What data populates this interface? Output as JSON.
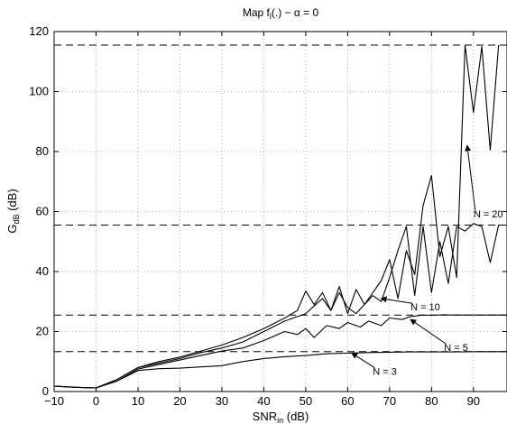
{
  "chart_data": {
    "type": "line",
    "title": {
      "prefix": "Map f",
      "subscript": "l",
      "suffix": "(.) − α = 0"
    },
    "xlabel": {
      "main": "SNR",
      "subscript": "in",
      "suffix": " (dB)"
    },
    "ylabel": {
      "main": "G",
      "subscript": "dB",
      "suffix": " (dB)"
    },
    "xlim": [
      -10,
      98
    ],
    "ylim": [
      0,
      120
    ],
    "xticks": [
      -10,
      0,
      10,
      20,
      30,
      40,
      50,
      60,
      70,
      80,
      90
    ],
    "yticks": [
      0,
      20,
      40,
      60,
      80,
      100,
      120
    ],
    "grid": true,
    "reference_lines": [
      115.5,
      55.5,
      25.5,
      13.3
    ],
    "series": [
      {
        "name": "N = 3",
        "x": [
          -10,
          -5,
          0,
          5,
          10,
          15,
          20,
          25,
          30,
          35,
          40,
          45,
          50,
          55,
          60,
          65,
          70,
          75,
          80,
          85,
          90,
          95,
          98
        ],
        "y": [
          1.8,
          1.4,
          1.2,
          3.5,
          7.0,
          7.6,
          7.8,
          8.2,
          8.6,
          10.0,
          11.0,
          11.6,
          12.0,
          12.6,
          12.8,
          13.0,
          13.1,
          13.2,
          13.2,
          13.2,
          13.3,
          13.3,
          13.3
        ]
      },
      {
        "name": "N = 5",
        "x": [
          -10,
          -5,
          0,
          5,
          10,
          15,
          20,
          25,
          30,
          35,
          40,
          45,
          48,
          50,
          52,
          55,
          58,
          60,
          63,
          65,
          68,
          70,
          73,
          75,
          78,
          80,
          83,
          85,
          88,
          90,
          95,
          98
        ],
        "y": [
          1.8,
          1.4,
          1.2,
          3.5,
          7.5,
          9.0,
          10.5,
          12.0,
          13.5,
          14.5,
          17.0,
          20.0,
          19.0,
          21.0,
          18.0,
          22.0,
          21.0,
          23.0,
          21.5,
          23.5,
          22.0,
          24.5,
          24.0,
          25.0,
          25.5,
          25.4,
          25.6,
          25.5,
          25.5,
          25.5,
          25.5,
          25.5
        ]
      },
      {
        "name": "N = 10",
        "x": [
          -10,
          -5,
          0,
          5,
          10,
          15,
          20,
          25,
          30,
          35,
          40,
          45,
          50,
          52,
          54,
          56,
          58,
          60,
          62,
          64,
          66,
          68,
          70,
          72,
          74,
          76,
          78,
          80,
          82,
          84,
          86,
          88,
          90,
          92,
          94,
          96,
          98
        ],
        "y": [
          1.8,
          1.4,
          1.2,
          4.0,
          8.0,
          9.5,
          11.0,
          13.0,
          14.5,
          16.5,
          20.0,
          23.5,
          26.0,
          28.5,
          31.0,
          27.0,
          33.0,
          28.0,
          26.0,
          29.0,
          32.0,
          30.0,
          38.0,
          47.0,
          55.0,
          32.0,
          55.0,
          33.0,
          50.0,
          36.0,
          55.0,
          53.5,
          56.0,
          55.0,
          43.0,
          55.5,
          55.5
        ]
      },
      {
        "name": "N = 20",
        "x": [
          -10,
          -5,
          0,
          5,
          10,
          15,
          20,
          25,
          30,
          35,
          40,
          45,
          48,
          50,
          52,
          54,
          56,
          58,
          60,
          62,
          64,
          66,
          68,
          70,
          72,
          74,
          76,
          78,
          80,
          82,
          84,
          86,
          88,
          90,
          92,
          94,
          96
        ],
        "y": [
          1.8,
          1.4,
          1.2,
          4.0,
          8.0,
          10.0,
          11.5,
          13.5,
          15.5,
          18.0,
          21.0,
          24.5,
          27.0,
          33.5,
          29.0,
          33.0,
          27.0,
          35.0,
          26.0,
          34.0,
          29.0,
          33.0,
          37.0,
          44.0,
          31.0,
          47.0,
          39.0,
          62.0,
          72.0,
          45.0,
          55.0,
          38.0,
          115.5,
          93.0,
          115.0,
          80.5,
          115.5
        ]
      }
    ],
    "annotations": [
      {
        "text": "N = 20",
        "x": 90,
        "y": 58,
        "arrow_to_x": 88.5,
        "arrow_to_y": 82
      },
      {
        "text": "N = 10",
        "x": 75,
        "y": 27,
        "arrow_to_x": 68,
        "arrow_to_y": 31
      },
      {
        "text": "N = 5",
        "x": 83,
        "y": 13.5,
        "arrow_to_x": 75,
        "arrow_to_y": 24
      },
      {
        "text": "N = 3",
        "x": 66,
        "y": 5.5,
        "arrow_to_x": 61,
        "arrow_to_y": 12.8
      }
    ]
  }
}
